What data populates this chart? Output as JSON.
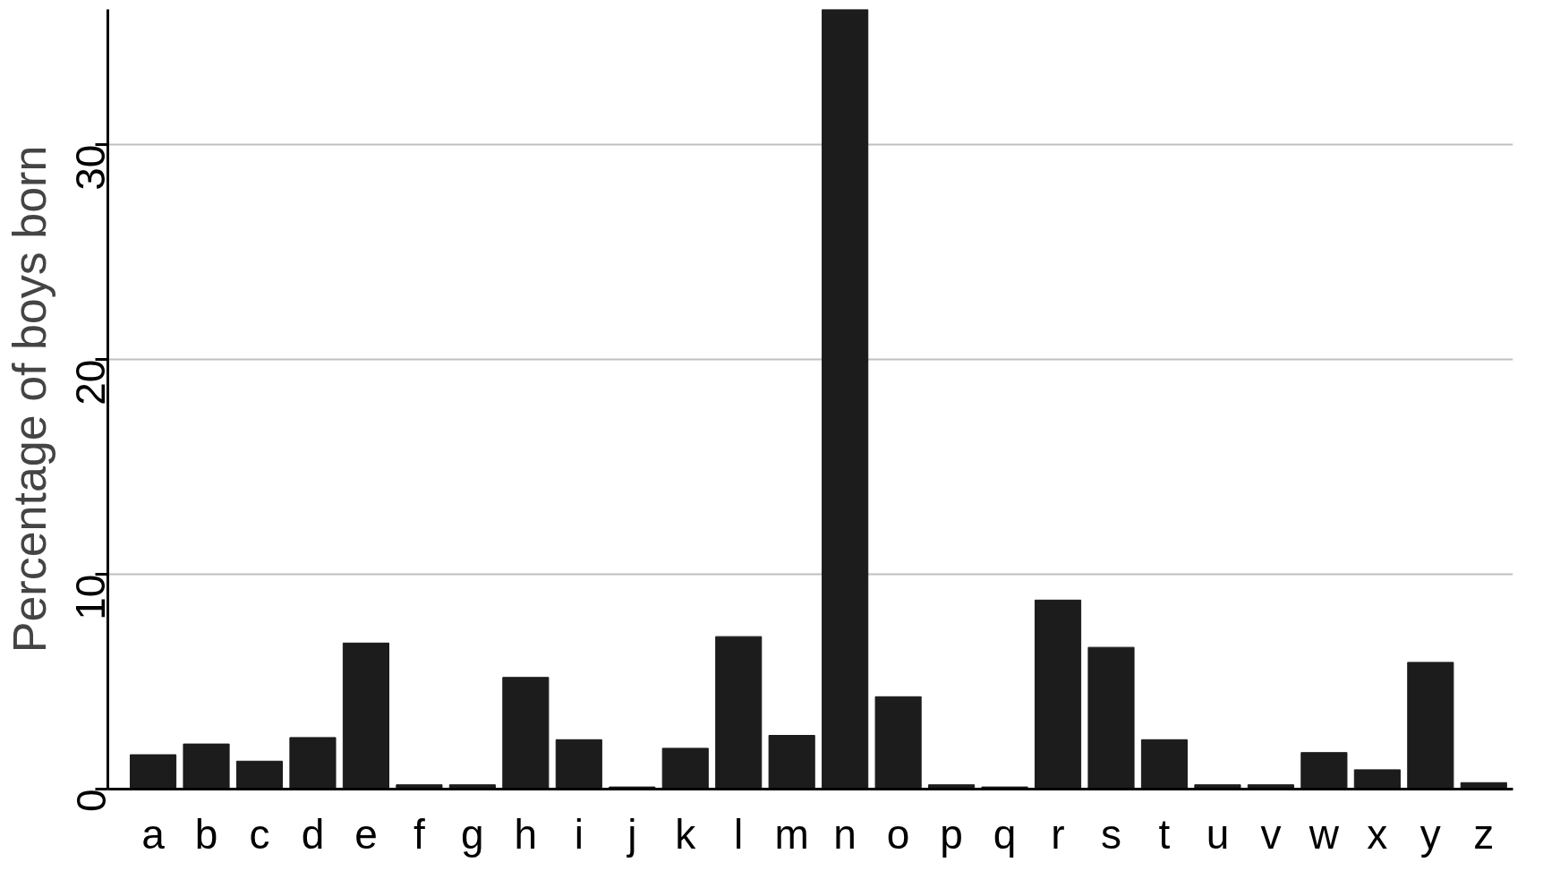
{
  "chart_data": {
    "type": "bar",
    "ylabel": "Percentage of boys born",
    "categories": [
      "a",
      "b",
      "c",
      "d",
      "e",
      "f",
      "g",
      "h",
      "i",
      "j",
      "k",
      "l",
      "m",
      "n",
      "o",
      "p",
      "q",
      "r",
      "s",
      "t",
      "u",
      "v",
      "w",
      "x",
      "y",
      "z"
    ],
    "values": [
      1.6,
      2.1,
      1.3,
      2.4,
      6.8,
      0.2,
      0.2,
      5.2,
      2.3,
      0.1,
      1.9,
      7.1,
      2.5,
      36.3,
      4.3,
      0.2,
      0.1,
      8.8,
      6.6,
      2.3,
      0.2,
      0.2,
      1.7,
      0.9,
      5.9,
      0.3
    ],
    "color": "#1c1c1c",
    "ylim": [
      0,
      36.3
    ],
    "yticks": [
      0,
      10,
      20,
      30
    ],
    "grid": "y"
  }
}
